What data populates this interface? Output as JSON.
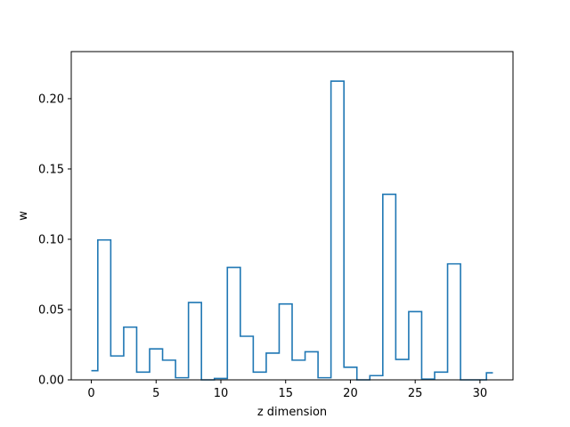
{
  "chart_data": {
    "type": "line",
    "style": "step",
    "title": "",
    "xlabel": "z dimension",
    "ylabel": "w",
    "xlim": [
      -1.55,
      32.55
    ],
    "ylim": [
      0,
      0.2335
    ],
    "xticks": [
      0,
      5,
      10,
      15,
      20,
      25,
      30
    ],
    "xtick_labels": [
      "0",
      "5",
      "10",
      "15",
      "20",
      "25",
      "30"
    ],
    "yticks": [
      0,
      0.05,
      0.1,
      0.15,
      0.2
    ],
    "ytick_labels": [
      "0.00",
      "0.05",
      "0.10",
      "0.15",
      "0.20"
    ],
    "grid": false,
    "legend": false,
    "color": "#1f77b4",
    "series": [
      {
        "x": [
          0,
          1,
          2,
          3,
          4,
          5,
          6,
          7,
          8,
          9,
          10,
          11,
          12,
          13,
          14,
          15,
          16,
          17,
          18,
          19,
          20,
          21,
          22,
          23,
          24,
          25,
          26,
          27,
          28,
          29,
          30,
          31
        ],
        "values": [
          0.0065,
          0.0995,
          0.017,
          0.0375,
          0.0055,
          0.022,
          0.014,
          0.0015,
          0.055,
          0.0,
          0.001,
          0.08,
          0.031,
          0.0055,
          0.019,
          0.054,
          0.014,
          0.02,
          0.0015,
          0.2125,
          0.009,
          0.0,
          0.003,
          0.132,
          0.0145,
          0.0485,
          0.0005,
          0.0055,
          0.0825,
          0.0,
          0.0,
          0.005
        ]
      }
    ]
  }
}
